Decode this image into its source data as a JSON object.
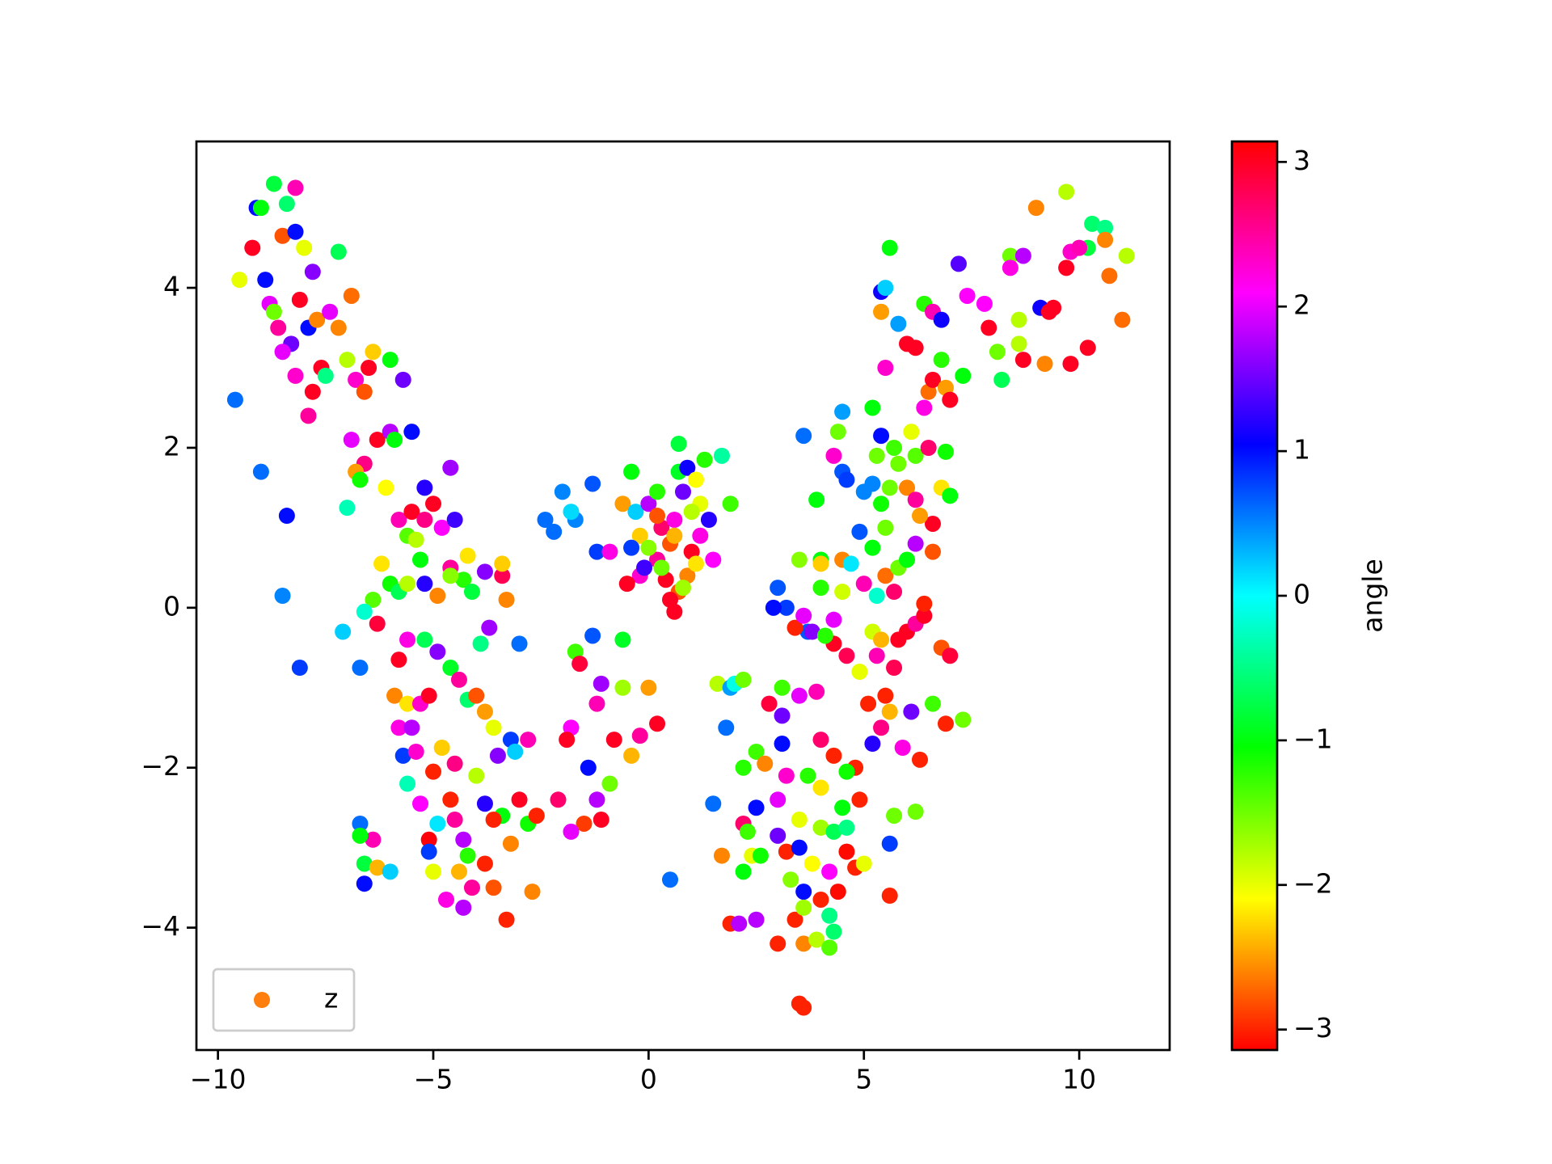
{
  "chart_data": {
    "type": "scatter",
    "colormap": "hsv",
    "clim": [
      -3.1416,
      3.1416
    ],
    "colorbar_label": "angle",
    "colorbar_ticks": [
      {
        "value": -3,
        "label": "−3"
      },
      {
        "value": -2,
        "label": "−2"
      },
      {
        "value": -1,
        "label": "−1"
      },
      0,
      1,
      2,
      3
    ],
    "xlim": [
      -10.5,
      12.1
    ],
    "ylim": [
      -5.53,
      5.83
    ],
    "xticks": [
      {
        "value": -10,
        "label": "−10"
      },
      {
        "value": -5,
        "label": "−5"
      },
      0,
      5,
      10
    ],
    "yticks": [
      {
        "value": -4,
        "label": "−4"
      },
      {
        "value": -2,
        "label": "−2"
      },
      0,
      2,
      4
    ],
    "grid": false,
    "legend": "lower left",
    "legend_color": "#ff7f0e",
    "series": [
      {
        "name": "z",
        "x": [
          -9.5,
          -9.2,
          -9.1,
          -9.0,
          -8.9,
          -8.8,
          -8.7,
          -8.7,
          -8.6,
          -8.5,
          -8.4,
          -8.3,
          -8.2,
          -8.2,
          -8.1,
          -8.0,
          -7.9,
          -7.8,
          -7.7,
          -7.6,
          -7.5,
          -7.4,
          -7.2,
          -7.2,
          -7.0,
          -6.9,
          -6.8,
          -6.6,
          -6.5,
          -6.4,
          -6.0,
          -5.7,
          -8.4,
          -8.5,
          -8.1,
          -9.6,
          -9.0,
          -7.9,
          -7.8,
          -8.2,
          -8.5,
          -7.0,
          -7.1,
          -6.7,
          -6.9,
          -6.6,
          -6.3,
          -6.1,
          -6.0,
          -5.9,
          -5.5,
          -5.2,
          -4.6,
          -6.8,
          -6.7,
          -5.8,
          -5.5,
          -5.2,
          -5.0,
          -4.8,
          -4.5,
          -5.6,
          -5.4,
          -5.3,
          -6.2,
          -6.0,
          -5.8,
          -6.4,
          -6.6,
          -6.3,
          -5.6,
          -5.2,
          -4.9,
          -4.6,
          -4.3,
          -4.2,
          -3.8,
          -3.4,
          -3.4,
          -3.3,
          -4.1,
          -4.6,
          -5.8,
          -5.6,
          -5.2,
          -4.9,
          -4.6,
          -4.4,
          -4.2,
          -4.0,
          -3.8,
          -3.9,
          -3.7,
          -3.0,
          -5.9,
          -5.6,
          -5.3,
          -5.1,
          -5.8,
          -5.5,
          -5.7,
          -5.4,
          -5.0,
          -4.8,
          -4.5,
          -4.0,
          -3.6,
          -3.5,
          -3.2,
          -2.8,
          -3.1,
          -5.6,
          -5.3,
          -5.1,
          -5.1,
          -4.9,
          -4.6,
          -4.5,
          -4.3,
          -4.2,
          -4.4,
          -4.1,
          -4.3,
          -4.7,
          -3.8,
          -3.6,
          -3.3,
          -3.4,
          -3.2,
          -2.8,
          -2.7,
          -3.8,
          -3.6,
          -3.0,
          -2.6,
          -5.0,
          -6.6,
          -6.6,
          -6.3,
          -6.7,
          -6.0,
          -6.4,
          -6.7,
          -2.4,
          -2.2,
          -2.0,
          -1.7,
          -1.8,
          -1.3,
          -1.2,
          -0.9,
          -0.6,
          -0.4,
          -0.3,
          -0.2,
          0,
          0.2,
          0.3,
          0.5,
          0.6,
          0.7,
          0.7,
          0.8,
          0.9,
          1.1,
          1.2,
          1.3,
          1.7,
          1.9,
          1.4,
          1.2,
          1.0,
          0.9,
          0.7,
          0.5,
          0.4,
          0.2,
          0.0,
          -0.4,
          -0.2,
          -0.5,
          1.1,
          0.8,
          1.5,
          0.6,
          0.3,
          1.0,
          0.6,
          0.2,
          -0.1,
          -1.7,
          -1.6,
          -1.3,
          -0.6,
          -1.1,
          -0.6,
          0,
          -1.2,
          -1.8,
          -1.9,
          -0.8,
          -0.4,
          -0.2,
          0.2,
          -1.4,
          -1.2,
          -0.9,
          -2.1,
          -1.5,
          -1.1,
          -1.8,
          0.5,
          1.6,
          1.9,
          2.0,
          1.8,
          2.2,
          2.5,
          2.2,
          2.7,
          2.8,
          3.1,
          3.1,
          3.1,
          3.5,
          3.9,
          4.0,
          3.7,
          3.2,
          3.0,
          2.5,
          2.2,
          2.3,
          2.4,
          2.2,
          2.6,
          3.0,
          3.2,
          3.5,
          3.3,
          3.6,
          3.8,
          4.0,
          4.2,
          4.4,
          4.6,
          4.8,
          5.0,
          3.5,
          4.0,
          4.3,
          4.5,
          4.6,
          4.9,
          4.8,
          4.6,
          4.3,
          4.0,
          1.9,
          2.1,
          2.5,
          3.0,
          3.4,
          3.6,
          3.9,
          4.2,
          4.3,
          4.2,
          3.6,
          3.5,
          3.6,
          1.7,
          1.5,
          5.6,
          5.6,
          5.7,
          6.2,
          6.3,
          5.9,
          6.1,
          6.6,
          6.9,
          7.3,
          6.8,
          7.0,
          5.1,
          5.2,
          5.4,
          5.6,
          5.5,
          5.7,
          5.3,
          4.9,
          4.6,
          4.3,
          3.7,
          3.4,
          3.6,
          3.8,
          3.2,
          3.0,
          2.9,
          4.0,
          4.3,
          4.5,
          4.7,
          4.5,
          5.2,
          5.4,
          5.8,
          6.0,
          6.2,
          6.4,
          6.4,
          5.0,
          5.3,
          5.5,
          5.7,
          5.8,
          6.0,
          6.2,
          6.6,
          5.5,
          4.9,
          5.0,
          5.2,
          5.4,
          5.6,
          5.8,
          6.0,
          6.2,
          6.6,
          6.8,
          7.0,
          6.3,
          4.5,
          4.5,
          4.4,
          4.3,
          5.2,
          5.4,
          5.7,
          6.1,
          6.2,
          6.5,
          6.9,
          6.4,
          6.5,
          6.6,
          6.9,
          7.0,
          7.3,
          6.0,
          6.2,
          6.8,
          6.4,
          6.6,
          6.8,
          5.5,
          5.6,
          5.4,
          5.5,
          5.8,
          5.4,
          7.2,
          7.4,
          7.8,
          7.9,
          8.1,
          8.2,
          8.4,
          8.6,
          8.6,
          8.4,
          8.7,
          8.7,
          9.0,
          9.1,
          9.2,
          9.4,
          9.7,
          9.8,
          9.8,
          9.7,
          10.2,
          10.2,
          10.3,
          10.6,
          10.6,
          10.7,
          11.0,
          11.1,
          10.0,
          9.3,
          5.3,
          5.2,
          4.0,
          3.5,
          3.6,
          3.9,
          4.6,
          4.0,
          4.1
        ],
        "values": [
          4.1,
          4.5,
          5.0,
          5.0,
          4.1,
          3.8,
          3.7,
          5.3,
          3.5,
          4.65,
          5.05,
          3.3,
          4.7,
          5.25,
          3.85,
          4.5,
          3.5,
          4.2,
          3.6,
          3.0,
          2.9,
          3.7,
          4.45,
          3.5,
          3.1,
          3.9,
          2.85,
          2.7,
          3.0,
          3.2,
          3.1,
          2.85,
          1.15,
          0.15,
          -0.75,
          2.6,
          1.7,
          2.4,
          2.7,
          2.9,
          3.2,
          1.25,
          -0.3,
          -0.75,
          2.1,
          1.8,
          2.1,
          1.5,
          2.2,
          2.1,
          2.2,
          1.5,
          1.75,
          1.7,
          1.6,
          1.1,
          1.2,
          1.1,
          1.3,
          1.0,
          1.1,
          0.9,
          0.85,
          0.6,
          0.55,
          0.3,
          0.2,
          0.1,
          -0.05,
          -0.2,
          0.3,
          0.3,
          0.15,
          0.5,
          0.35,
          0.65,
          0.45,
          0.4,
          0.55,
          0.1,
          0.2,
          0.4,
          -0.65,
          -0.4,
          -0.4,
          -0.55,
          -0.75,
          -0.9,
          -1.15,
          -1.1,
          -1.3,
          -0.45,
          -0.25,
          -0.45,
          -1.1,
          -1.2,
          -1.2,
          -1.1,
          -1.5,
          -1.5,
          -1.85,
          -1.8,
          -2.05,
          -1.75,
          -1.95,
          -2.1,
          -1.5,
          -1.85,
          -1.65,
          -1.65,
          -1.8,
          -2.2,
          -2.45,
          -2.9,
          -3.05,
          -2.7,
          -2.4,
          -2.65,
          -2.9,
          -3.1,
          -3.3,
          -3.5,
          -3.75,
          -3.65,
          -3.2,
          -3.5,
          -3.9,
          -2.6,
          -2.95,
          -2.7,
          -3.55,
          -2.45,
          -2.65,
          -2.4,
          -2.6,
          -3.3,
          -3.2,
          -3.45,
          -3.25,
          -2.7,
          -3.3,
          -2.9,
          -2.85,
          1.1,
          0.95,
          1.45,
          1.1,
          1.2,
          1.55,
          0.7,
          0.7,
          1.3,
          1.7,
          1.2,
          0.9,
          1.3,
          1.45,
          1.0,
          0.8,
          1.1,
          2.05,
          1.7,
          1.45,
          1.75,
          1.6,
          1.3,
          1.85,
          1.9,
          1.3,
          1.1,
          0.9,
          0.7,
          0.4,
          0.2,
          0.1,
          0.35,
          0.6,
          0.75,
          0.75,
          0.4,
          0.3,
          0.55,
          0.25,
          0.6,
          -0.05,
          0.5,
          1.2,
          0.9,
          1.15,
          0.5,
          -0.55,
          -0.7,
          -0.35,
          -0.4,
          -0.95,
          -1.0,
          -1.0,
          -1.2,
          -1.5,
          -1.65,
          -1.65,
          -1.85,
          -1.6,
          -1.45,
          -2.0,
          -2.4,
          -2.2,
          -2.4,
          -2.7,
          -2.65,
          -2.8,
          -3.4,
          -0.95,
          -1.0,
          -0.95,
          -1.5,
          -0.9,
          -1.8,
          -2.0,
          -1.95,
          -1.2,
          -1.0,
          -1.35,
          -1.7,
          -1.1,
          -1.05,
          -1.65,
          -2.1,
          -2.1,
          -2.4,
          -2.5,
          -2.7,
          -2.8,
          -3.1,
          -3.3,
          -3.1,
          -2.85,
          -3.05,
          -3.0,
          -3.4,
          -3.55,
          -3.2,
          -3.65,
          -3.3,
          -3.55,
          -3.05,
          -3.25,
          -3.2,
          -2.65,
          -2.75,
          -2.8,
          -2.5,
          -2.75,
          -2.4,
          -2.0,
          -2.05,
          -1.85,
          -2.25,
          -3.95,
          -3.95,
          -3.9,
          -4.2,
          -3.9,
          -4.2,
          -4.15,
          -4.25,
          -4.05,
          -3.85,
          -3.75,
          -4.95,
          -5.0,
          -3.1,
          -2.45,
          -2.95,
          -3.6,
          -2.6,
          -2.55,
          -1.9,
          -1.75,
          -1.3,
          -1.2,
          -1.45,
          -1.4,
          -0.5,
          -0.6,
          -1.2,
          -1.7,
          -1.5,
          -1.3,
          -1.1,
          -0.75,
          -0.6,
          -0.8,
          -0.6,
          -0.45,
          -0.3,
          -0.25,
          -0.1,
          -0.3,
          0.0,
          0.25,
          0.0,
          0.25,
          -0.15,
          0.6,
          0.55,
          0.2,
          -0.3,
          -0.4,
          -0.4,
          -0.3,
          -0.2,
          -0.1,
          0.05,
          0.3,
          0.15,
          0.4,
          0.2,
          0.5,
          0.6,
          0.8,
          0.7,
          1.0,
          0.95,
          1.45,
          1.55,
          1.3,
          1.5,
          1.8,
          1.5,
          1.35,
          1.05,
          1.5,
          1.4,
          1.15,
          1.7,
          2.45,
          2.2,
          1.9,
          2.5,
          2.15,
          2.0,
          2.2,
          1.9,
          2.0,
          1.95,
          2.5,
          2.7,
          2.85,
          2.75,
          2.6,
          2.9,
          3.3,
          3.25,
          3.1,
          3.8,
          3.7,
          3.6,
          3.0,
          4.5,
          3.95,
          4.0,
          3.55,
          3.7,
          4.3,
          3.9,
          3.8,
          3.5,
          3.2,
          2.85,
          4.4,
          3.6,
          3.3,
          4.25,
          4.4,
          3.1,
          5.0,
          3.75,
          3.05,
          3.75,
          4.25,
          4.45,
          3.05,
          5.2,
          3.25,
          4.5,
          4.8,
          4.75,
          4.6,
          4.15,
          3.6,
          4.4,
          4.5,
          3.7,
          1.9,
          0.75,
          0.6,
          0.6,
          2.15,
          1.35,
          1.6,
          0.55,
          -0.35
        ],
        "c": [
          -2,
          3,
          1,
          -1,
          1,
          2,
          -1.5,
          -0.8,
          2.5,
          -2.8,
          -0.6,
          1.5,
          1,
          2.4,
          3,
          -2,
          1,
          1.6,
          -2.6,
          3,
          -0.5,
          2,
          -0.7,
          -2.6,
          -1.8,
          -2.7,
          2.3,
          -2.8,
          3,
          -2.3,
          -1,
          1.5,
          1,
          0.5,
          0.8,
          0.6,
          0.6,
          2.5,
          3,
          2.3,
          2,
          -0.3,
          0.2,
          0.6,
          2,
          2.6,
          3,
          -2.1,
          1.8,
          -1,
          1,
          1.2,
          1.7,
          -2.5,
          -1.1,
          2.4,
          3,
          2.6,
          3,
          2.1,
          1.3,
          -1.4,
          -1.8,
          -1,
          -2.2,
          -1.1,
          -0.7,
          -1.4,
          -0.2,
          2.9,
          -1.8,
          1.2,
          -2.6,
          2.5,
          -1.2,
          -2.2,
          1.6,
          2.8,
          -2.3,
          -2.6,
          -0.8,
          -1.6,
          3,
          2.2,
          -0.7,
          1.6,
          -0.9,
          2.5,
          -0.6,
          -2.8,
          -2.5,
          -0.5,
          1.7,
          0.6,
          -2.6,
          -2.2,
          2.3,
          3,
          2.2,
          1.8,
          0.8,
          2.3,
          -3,
          -2.3,
          2.6,
          -1.8,
          -2,
          1.6,
          0.8,
          2.4,
          0.2,
          -0.3,
          2.1,
          3.1,
          0.8,
          0.1,
          -3,
          2.5,
          1.8,
          -1.2,
          -2.4,
          2.5,
          1.8,
          2.2,
          -3,
          -2.8,
          -3,
          -1,
          -2.6,
          -1.1,
          -2.6,
          1.2,
          -3,
          3,
          -3,
          -2,
          -0.8,
          1.0,
          -2.4,
          0.6,
          0.2,
          2.4,
          -1,
          0.6,
          0.6,
          0.5,
          0.5,
          0.15,
          0.7,
          0.8,
          2.2,
          -2.5,
          -1,
          0.2,
          -2.3,
          1.8,
          -1.2,
          2.7,
          -2.8,
          2.2,
          -0.8,
          -0.9,
          1.5,
          1.1,
          -2.1,
          -2.0,
          -1.2,
          -0.4,
          -1.3,
          1.2,
          2.2,
          3,
          -2.6,
          -2.8,
          3,
          3,
          2.5,
          -1.6,
          0.8,
          2.3,
          3,
          -2.2,
          -1.7,
          2.1,
          3,
          -1.5,
          -1.8,
          -2.4,
          -2.8,
          1.3,
          -1.3,
          2.9,
          0.7,
          -0.9,
          1.7,
          -1.7,
          -2.5,
          2.4,
          2.1,
          3,
          3,
          -2.4,
          2.5,
          3,
          1,
          1.8,
          -1.5,
          2.7,
          -2.9,
          3,
          2,
          0.6,
          -1.8,
          0.4,
          -0.1,
          0.6,
          -1.5,
          -1.3,
          -1.2,
          -2.6,
          2.9,
          -1.3,
          1.5,
          1.0,
          2.0,
          2.4,
          2.7,
          -1.2,
          2.3,
          2.0,
          1.0,
          2.7,
          -1.3,
          -2.0,
          -1.0,
          -1.1,
          1.5,
          -3,
          1.0,
          -1.6,
          1.0,
          -2.1,
          -3,
          2.1,
          -3.1,
          -3.1,
          -3,
          -2.0,
          -2.0,
          -1.7,
          -0.7,
          -1,
          -0.5,
          -3,
          -3,
          -1.1,
          -3,
          -2.2,
          -3,
          1.8,
          1.8,
          -3,
          -3,
          -2.6,
          -1.8,
          -1.4,
          -0.6,
          -0.5,
          -1.7,
          -3,
          -3,
          -2.6,
          0.6,
          0.8,
          -3,
          -1.5,
          -1.5,
          -3,
          2.2,
          1.5,
          -1.3,
          -3,
          -1.5,
          -2.8,
          2.9,
          -3,
          1.2,
          2.6,
          -2.4,
          -3,
          2.8,
          2.4,
          -2.0,
          2.8,
          3,
          0.7,
          -3,
          2,
          1.6,
          0.8,
          0.7,
          1.0,
          -1.2,
          2,
          -2.6,
          0.1,
          -1.9,
          -1.9,
          -2.4,
          3,
          3,
          2.5,
          3,
          -3,
          2.4,
          -0.2,
          -2.7,
          2.7,
          -1.5,
          -1.0,
          1.8,
          -2.8,
          -1.5,
          0.7,
          0.5,
          0.5,
          -1.1,
          -1.5,
          -1.5,
          -2.6,
          2.5,
          3,
          -2.2,
          -1.0,
          -2.5,
          0.7,
          0.4,
          -1.5,
          2.3,
          -1,
          1,
          -1.3,
          -2,
          -1.4,
          2.7,
          -1.1,
          2.2,
          -2.7,
          3,
          -2.5,
          3,
          -1,
          3,
          3,
          -1.2,
          -1.2,
          2.4,
          1.1,
          2.3,
          -1.0,
          1.1,
          0.2,
          0.4,
          -2.5,
          1.4,
          2.1,
          2.1,
          3,
          -1.5,
          -0.7,
          -1.5,
          -1.8,
          -1.8,
          2.2,
          1.8,
          3,
          -2.6,
          1.1,
          -2.6,
          3,
          3,
          2.3,
          3,
          -1.8,
          3,
          -0.8,
          -0.6,
          -0.5,
          -2.6,
          -2.7,
          -2.7,
          -1.8,
          2.4,
          3,
          -1.5,
          -1,
          -1,
          -1.6,
          0.6,
          -1,
          0.8,
          -2.3,
          -1.2
        ]
      }
    ]
  }
}
